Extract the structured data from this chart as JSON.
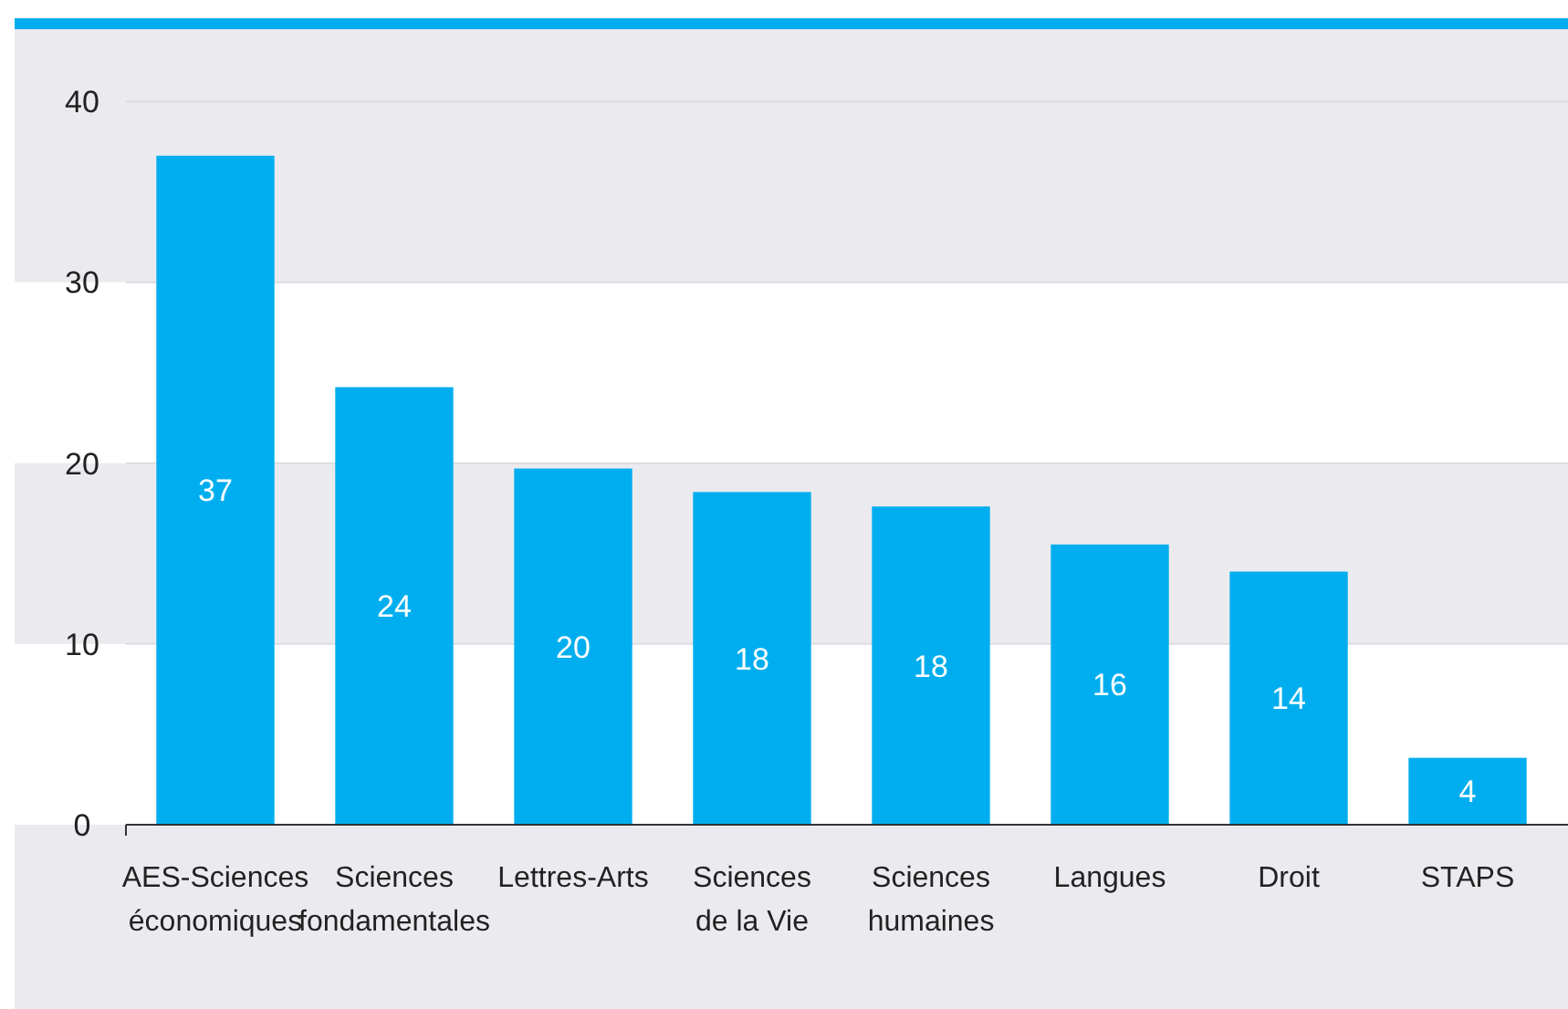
{
  "chart_data": {
    "type": "bar",
    "categories": [
      "AES-Sciences économiques",
      "Sciences fondamentales",
      "Lettres-Arts",
      "Sciences de la Vie",
      "Sciences humaines",
      "Langues",
      "Droit",
      "STAPS"
    ],
    "values": [
      37,
      24.2,
      19.7,
      18.4,
      17.6,
      15.5,
      14,
      3.7
    ],
    "value_labels": [
      "37",
      "24",
      "20",
      "18",
      "18",
      "16",
      "14",
      "4"
    ],
    "color": "#00aeef",
    "ylim": [
      0,
      44
    ],
    "yticks": [
      0,
      10,
      20,
      30,
      40
    ],
    "grid": true
  }
}
